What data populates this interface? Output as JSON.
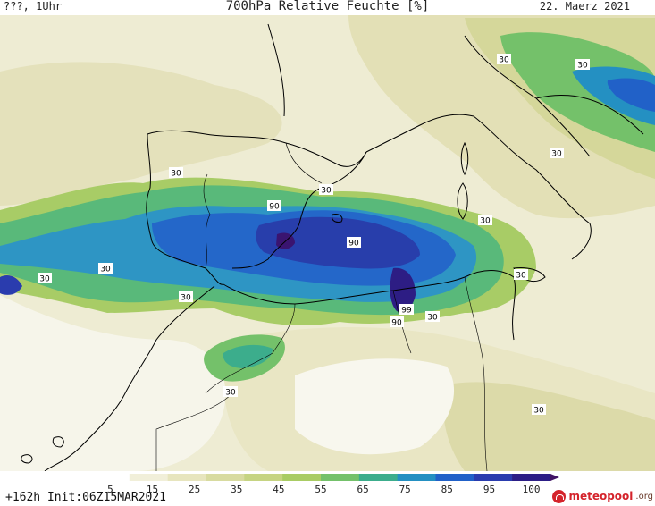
{
  "header": {
    "left": "???, 1Uhr",
    "title": "700hPa Relative Feuchte [%]",
    "date": "22. Maerz 2021"
  },
  "footer": {
    "init": "+162h Init:06Z15MAR2021",
    "logo_text": "meteopool",
    "logo_suffix": ".org"
  },
  "colorbar": {
    "ticks": [
      "5",
      "15",
      "25",
      "35",
      "45",
      "55",
      "65",
      "75",
      "85",
      "95",
      "100"
    ],
    "colors": [
      "#ffffff",
      "#f1efd9",
      "#e7e5be",
      "#d8dba0",
      "#c6d482",
      "#a9cc64",
      "#74c16a",
      "#3cad8c",
      "#2490c2",
      "#2161c8",
      "#2a3cae",
      "#2c1e86",
      "#401364"
    ]
  },
  "contour_labels": [
    {
      "text": "90"
    },
    {
      "text": "90"
    },
    {
      "text": "30"
    },
    {
      "text": "30"
    },
    {
      "text": "30"
    },
    {
      "text": "30"
    },
    {
      "text": "99"
    },
    {
      "text": "90"
    },
    {
      "text": "30"
    },
    {
      "text": "30"
    },
    {
      "text": "30"
    },
    {
      "text": "30"
    },
    {
      "text": "30"
    },
    {
      "text": "30"
    },
    {
      "text": "30"
    },
    {
      "text": "30"
    },
    {
      "text": "30"
    }
  ]
}
